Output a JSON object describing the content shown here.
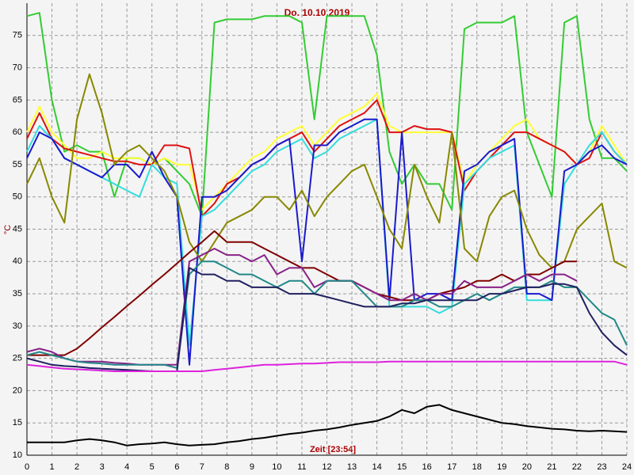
{
  "chart_data": {
    "type": "line",
    "title": "Do. 10.10.2019",
    "x_label": "Zeit [23:54]",
    "y_label": "°C",
    "x": [
      0,
      0.5,
      1,
      1.5,
      2,
      2.5,
      3,
      3.5,
      4,
      4.5,
      5,
      5.5,
      6,
      6.5,
      7,
      7.5,
      8,
      8.5,
      9,
      9.5,
      10,
      10.5,
      11,
      11.5,
      12,
      12.5,
      13,
      13.5,
      14,
      14.5,
      15,
      15.5,
      16,
      16.5,
      17,
      17.5,
      18,
      18.5,
      19,
      19.5,
      20,
      20.5,
      21,
      21.5,
      22,
      22.5,
      23,
      23.5,
      24
    ],
    "xlim": [
      0,
      24
    ],
    "xticks": [
      0,
      1,
      2,
      3,
      4,
      5,
      6,
      7,
      8,
      9,
      10,
      11,
      12,
      13,
      14,
      15,
      16,
      17,
      18,
      19,
      20,
      21,
      22,
      23,
      24
    ],
    "ylim": [
      10,
      80
    ],
    "yticks": [
      10,
      15,
      20,
      25,
      30,
      35,
      40,
      45,
      50,
      55,
      60,
      65,
      70,
      75
    ],
    "grid": true,
    "series": [
      {
        "color": "#33cc33",
        "values": [
          78,
          78.5,
          65,
          57,
          58,
          57,
          57,
          50,
          56,
          56,
          55,
          56,
          54,
          52,
          47,
          77,
          77.5,
          77.5,
          77.5,
          78,
          78,
          78,
          77,
          62,
          78,
          78,
          78,
          78,
          72,
          57,
          52,
          55,
          52,
          52,
          48,
          76,
          77,
          77,
          77,
          78,
          60,
          55,
          50,
          77,
          78,
          62,
          56,
          56,
          54
        ]
      },
      {
        "color": "#ffff33",
        "values": [
          60,
          64,
          60,
          58,
          56,
          56,
          57,
          56,
          56,
          56,
          55,
          56,
          55,
          55,
          48,
          50,
          52,
          54,
          56,
          57,
          59,
          60,
          61,
          58,
          60,
          62,
          63,
          64,
          66,
          61,
          60,
          60,
          60,
          60,
          60,
          52,
          55,
          57,
          59,
          61,
          62,
          59,
          58,
          57,
          55,
          57,
          61,
          58,
          55
        ]
      },
      {
        "color": "#dd1111",
        "values": [
          59,
          63,
          59,
          57.5,
          57,
          56.5,
          56,
          55.5,
          55.5,
          55,
          55,
          58,
          58,
          57.5,
          47,
          49,
          52,
          53,
          55,
          56,
          58,
          59,
          60,
          57,
          59,
          61,
          62,
          63,
          65,
          60,
          60,
          61,
          60.5,
          60.5,
          60,
          51,
          54,
          56,
          58,
          60,
          60,
          59,
          58,
          57,
          55,
          56,
          60,
          57,
          55
        ]
      },
      {
        "color": "#33dddd",
        "values": [
          57,
          61,
          59,
          56,
          55,
          54,
          53,
          52,
          51,
          50,
          55,
          53,
          52,
          27,
          47,
          48,
          50,
          52,
          54,
          55,
          57,
          58,
          59,
          56,
          57,
          59,
          60,
          61,
          62,
          33,
          33,
          33,
          33,
          32,
          33,
          52,
          54,
          56,
          57,
          58,
          34,
          34,
          34,
          52,
          55,
          58,
          60,
          57,
          55
        ]
      },
      {
        "color": "#1a1acc",
        "values": [
          56,
          60,
          59,
          56,
          55,
          54,
          53,
          55,
          55,
          53,
          57,
          53,
          50,
          24,
          50,
          50,
          51,
          53,
          55,
          56,
          58,
          59,
          40,
          58,
          58,
          60,
          61,
          62,
          62,
          34,
          60,
          34,
          35,
          35,
          34,
          54,
          55,
          57,
          58,
          59,
          35,
          35,
          34,
          54,
          55,
          57,
          58,
          56,
          55
        ]
      },
      {
        "color": "#888800",
        "values": [
          52,
          56,
          50,
          46,
          62,
          69,
          63,
          55,
          57,
          58,
          56,
          54,
          50,
          43,
          40,
          43,
          46,
          47,
          48,
          50,
          50,
          48,
          51,
          47,
          50,
          52,
          54,
          55,
          50,
          45,
          42,
          55,
          50,
          46,
          60,
          42,
          40,
          47,
          50,
          51,
          45,
          41,
          39,
          40,
          45,
          47,
          49,
          40,
          39
        ]
      },
      {
        "color": "#800000",
        "values": [
          25.5,
          25.5,
          25.5,
          25.5,
          26.5,
          28.1,
          29.8,
          31.4,
          33.1,
          34.7,
          36.4,
          38,
          39.7,
          41.4,
          43,
          44.7,
          43,
          43,
          43,
          42,
          41,
          40,
          39,
          39,
          38,
          37,
          37,
          36,
          35,
          34.5,
          34,
          34,
          34,
          35,
          35.5,
          36,
          37,
          37,
          38,
          37,
          38,
          38,
          39,
          40,
          40,
          null,
          null,
          null,
          null
        ]
      },
      {
        "color": "#882288",
        "values": [
          26,
          26.5,
          26,
          25,
          24.5,
          24.5,
          24.5,
          24.3,
          24.2,
          24,
          24,
          24,
          24,
          40,
          41,
          42,
          41,
          41,
          40,
          41,
          38,
          39,
          39,
          36,
          37,
          37,
          37,
          36,
          35,
          34,
          34,
          35,
          34,
          35,
          35,
          37,
          36,
          36,
          36,
          37,
          38,
          37,
          38,
          38,
          37,
          null,
          null,
          null,
          null
        ]
      },
      {
        "color": "#228888",
        "values": [
          25.5,
          26,
          25.5,
          25,
          24.5,
          24.3,
          24.2,
          24,
          24,
          24,
          24,
          24,
          23.5,
          38,
          40,
          40,
          39,
          38,
          38,
          37,
          36,
          37,
          37,
          35,
          37,
          37,
          37,
          35,
          33,
          33,
          33,
          34,
          34,
          33,
          33,
          34,
          35,
          34,
          35,
          36,
          36,
          36,
          37,
          36,
          36,
          34,
          32,
          31,
          27
        ]
      },
      {
        "color": "#202060",
        "values": [
          25,
          24.5,
          24,
          23.8,
          23.7,
          23.5,
          23.4,
          23.3,
          23.2,
          23.1,
          23,
          23,
          23,
          39,
          38,
          38,
          37,
          37,
          36,
          36,
          36,
          35,
          35,
          35,
          34.5,
          34,
          33.5,
          33,
          33,
          33,
          33.5,
          33.5,
          34,
          34,
          34,
          34,
          34,
          35,
          35,
          35.5,
          36,
          36,
          36.5,
          36.5,
          36,
          32,
          29,
          27,
          25.5
        ]
      },
      {
        "color": "#dd22dd",
        "values": [
          24,
          23.8,
          23.6,
          23.4,
          23.3,
          23.2,
          23.1,
          23,
          23,
          23,
          23,
          23,
          23,
          23,
          23,
          23.2,
          23.4,
          23.6,
          23.8,
          24,
          24,
          24.1,
          24.2,
          24.2,
          24.3,
          24.4,
          24.4,
          24.4,
          24.4,
          24.5,
          24.5,
          24.5,
          24.5,
          24.5,
          24.5,
          24.5,
          24.5,
          24.5,
          24.5,
          24.5,
          24.5,
          24.5,
          24.5,
          24.5,
          24.5,
          24.5,
          24.5,
          24.5,
          24
        ]
      },
      {
        "color": "#000000",
        "values": [
          12,
          12,
          12,
          12,
          12.3,
          12.5,
          12.3,
          12,
          11.5,
          11.7,
          11.8,
          12,
          11.7,
          11.5,
          11.6,
          11.7,
          12,
          12.2,
          12.5,
          12.7,
          13,
          13.3,
          13.5,
          13.8,
          14,
          14.3,
          14.7,
          15,
          15.3,
          16,
          17,
          16.5,
          17.5,
          17.8,
          17,
          16.5,
          16,
          15.5,
          15,
          14.8,
          14.5,
          14.3,
          14.1,
          14,
          13.8,
          13.7,
          13.8,
          13.7,
          13.6
        ]
      }
    ]
  }
}
